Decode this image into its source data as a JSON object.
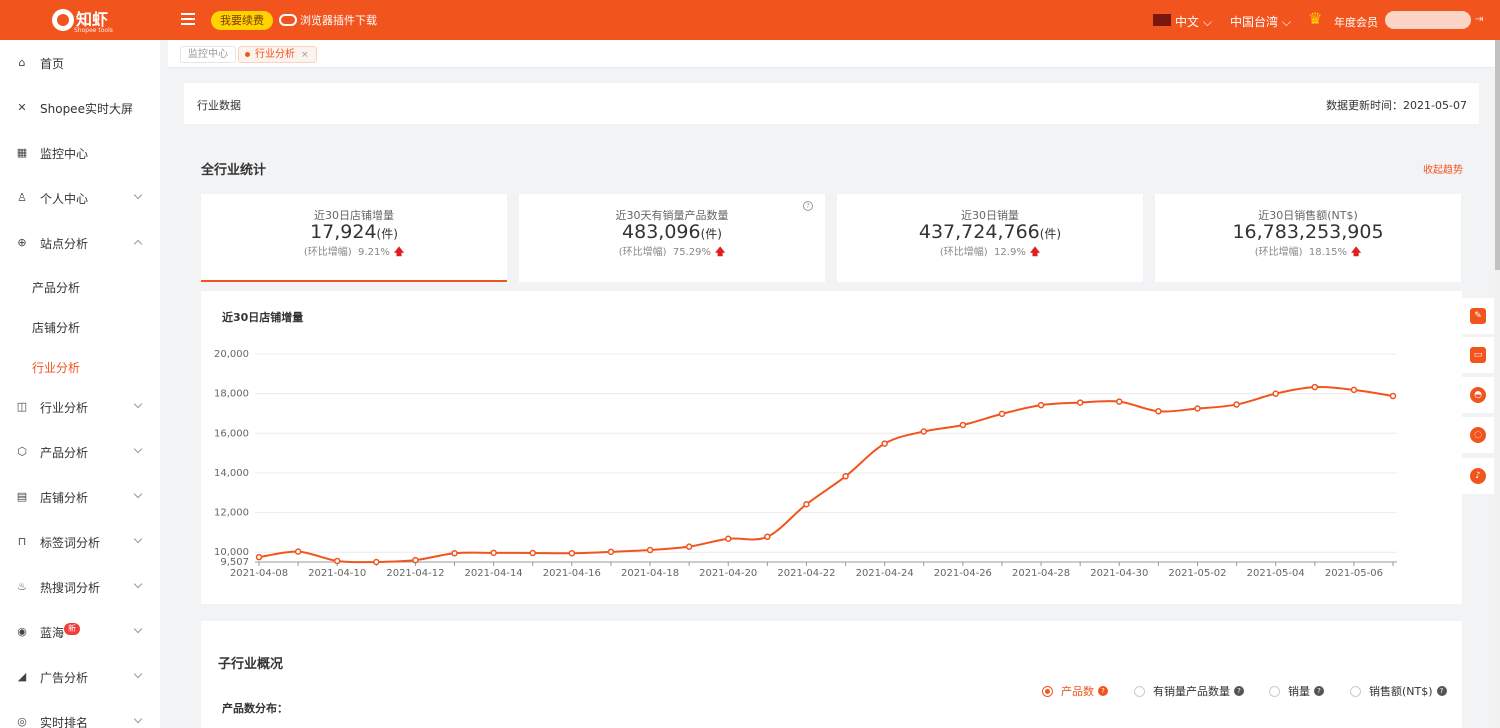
{
  "header": {
    "logo_text": "知虾",
    "logo_sub": "Shopee tools",
    "renew_label": "我要续费",
    "plugin_label": "浏览器插件下载",
    "lang_label": "中文",
    "region_label": "中国台湾",
    "member_label": "年度会员"
  },
  "sidebar": {
    "items": [
      {
        "label": "首页",
        "icon": "home-icon"
      },
      {
        "label": "Shopee实时大屏",
        "icon": "screen-icon"
      },
      {
        "label": "监控中心",
        "icon": "monitor-icon"
      },
      {
        "label": "个人中心",
        "icon": "user-icon"
      },
      {
        "label": "站点分析",
        "icon": "globe-icon"
      },
      {
        "label": "行业分析",
        "icon": "chart-icon"
      },
      {
        "label": "产品分析",
        "icon": "box-icon"
      },
      {
        "label": "店铺分析",
        "icon": "shop-icon"
      },
      {
        "label": "标签词分析",
        "icon": "bookmark-icon"
      },
      {
        "label": "热搜词分析",
        "icon": "fire-icon"
      },
      {
        "label": "蓝海",
        "icon": "ocean-icon"
      },
      {
        "label": "广告分析",
        "icon": "ad-icon"
      },
      {
        "label": "实时排名",
        "icon": "rank-icon"
      }
    ],
    "sub_items": [
      "产品分析",
      "店铺分析",
      "行业分析"
    ],
    "new_badge": "新"
  },
  "tabs": [
    {
      "label": "监控中心"
    },
    {
      "label": "行业分析",
      "close": "×"
    }
  ],
  "page": {
    "panel_title": "行业数据",
    "update_time": "数据更新时间：2021-05-07",
    "section_title": "全行业统计",
    "collapse_label": "收起趋势"
  },
  "cards": [
    {
      "label": "近30日店铺增量",
      "value": "17,924",
      "unit": "(件)",
      "growth_label": "(环比增幅)",
      "growth": "9.21%"
    },
    {
      "label": "近30天有销量产品数量",
      "value": "483,096",
      "unit": "(件)",
      "growth_label": "(环比增幅)",
      "growth": "75.29%"
    },
    {
      "label": "近30日销量",
      "value": "437,724,766",
      "unit": "(件)",
      "growth_label": "(环比增幅)",
      "growth": "12.9%"
    },
    {
      "label": "近30日销售额(NT$)",
      "value": "16,783,253,905",
      "unit": "",
      "growth_label": "(环比增幅)",
      "growth": "18.15%"
    }
  ],
  "chart_data": {
    "type": "line",
    "title": "近30日店铺增量",
    "y_ticks": [
      "20,000",
      "18,000",
      "16,000",
      "14,000",
      "12,000",
      "10,000",
      "9,507"
    ],
    "ylim": [
      9507,
      20000
    ],
    "x_tick_labels": [
      "2021-04-08",
      "2021-04-10",
      "2021-04-12",
      "2021-04-14",
      "2021-04-16",
      "2021-04-18",
      "2021-04-20",
      "2021-04-22",
      "2021-04-24",
      "2021-04-26",
      "2021-04-28",
      "2021-04-30",
      "2021-05-02",
      "2021-05-04",
      "2021-05-06"
    ],
    "x": [
      "2021-04-08",
      "2021-04-09",
      "2021-04-10",
      "2021-04-11",
      "2021-04-12",
      "2021-04-13",
      "2021-04-14",
      "2021-04-15",
      "2021-04-16",
      "2021-04-17",
      "2021-04-18",
      "2021-04-19",
      "2021-04-20",
      "2021-04-21",
      "2021-04-22",
      "2021-04-23",
      "2021-04-24",
      "2021-04-25",
      "2021-04-26",
      "2021-04-27",
      "2021-04-28",
      "2021-04-29",
      "2021-04-30",
      "2021-05-01",
      "2021-05-02",
      "2021-05-03",
      "2021-05-04",
      "2021-05-05",
      "2021-05-06",
      "2021-05-07"
    ],
    "values": [
      9750,
      10030,
      9560,
      9507,
      9600,
      9950,
      9970,
      9960,
      9950,
      10020,
      10110,
      10280,
      10680,
      10780,
      12420,
      13830,
      15480,
      16090,
      16420,
      16980,
      17420,
      17550,
      17600,
      17110,
      17250,
      17450,
      18000,
      18330,
      18190,
      17880
    ],
    "color": "#f2541e",
    "grid": true
  },
  "sub_section": {
    "title": "子行业概况",
    "dist_label": "产品数分布：",
    "options": [
      {
        "label": "产品数",
        "selected": true
      },
      {
        "label": "有销量产品数量",
        "selected": false
      },
      {
        "label": "销量",
        "selected": false
      },
      {
        "label": "销售额(NT$)",
        "selected": false
      }
    ]
  },
  "colors": {
    "accent": "#f2541e",
    "up_arrow": "#e02020"
  }
}
